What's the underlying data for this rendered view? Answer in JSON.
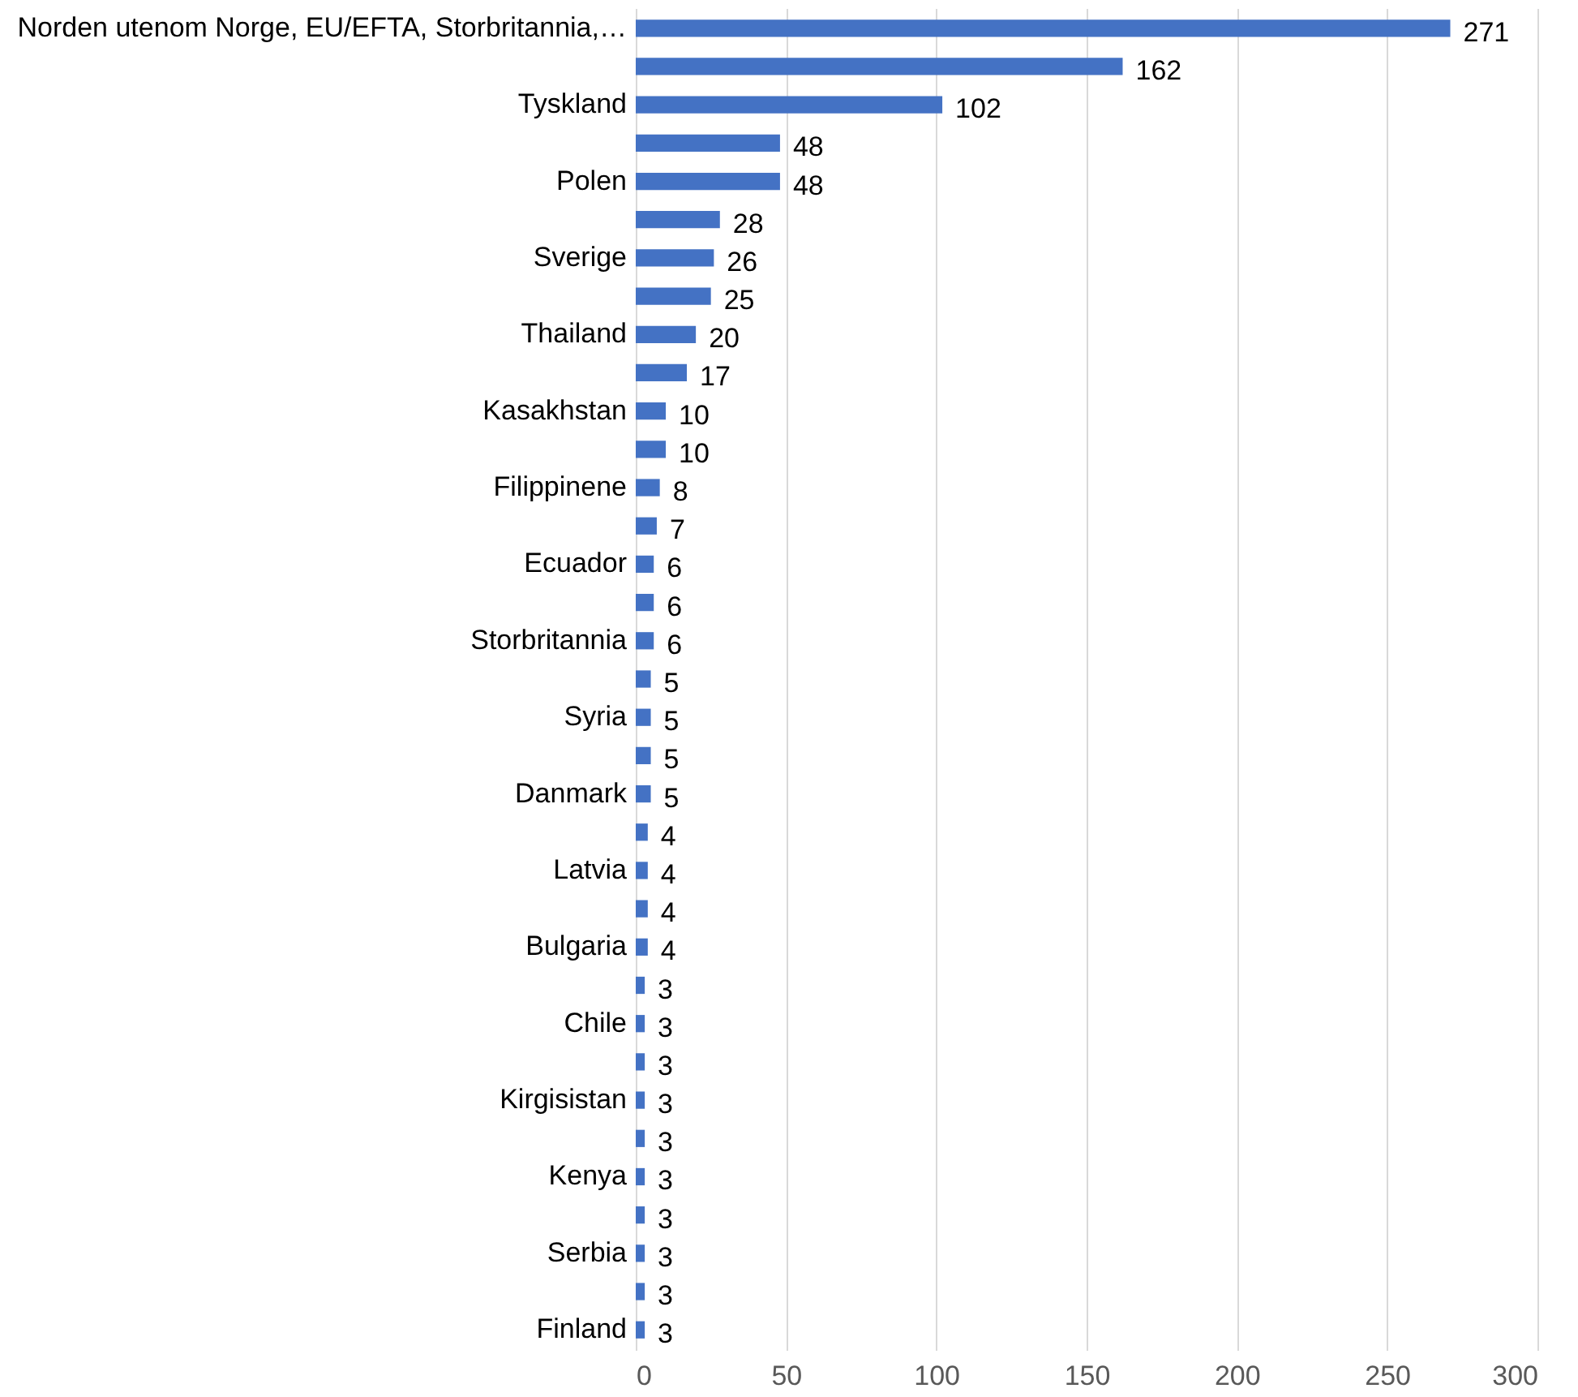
{
  "chart_data": {
    "type": "bar",
    "orientation": "horizontal",
    "categories": [
      "Norden utenom Norge, EU/EFTA,  Storbritannia,…",
      null,
      "Tyskland",
      null,
      "Polen",
      null,
      "Sverige",
      null,
      "Thailand",
      null,
      "Kasakhstan",
      null,
      "Filippinene",
      null,
      "Ecuador",
      null,
      "Storbritannia",
      null,
      "Syria",
      null,
      "Danmark",
      null,
      "Latvia",
      null,
      "Bulgaria",
      null,
      "Chile",
      null,
      "Kirgisistan",
      null,
      "Kenya",
      null,
      "Serbia",
      null,
      "Finland"
    ],
    "values": [
      271,
      162,
      102,
      48,
      48,
      28,
      26,
      25,
      20,
      17,
      10,
      10,
      8,
      7,
      6,
      6,
      6,
      5,
      5,
      5,
      5,
      4,
      4,
      4,
      4,
      3,
      3,
      3,
      3,
      3,
      3,
      3,
      3,
      3,
      3
    ],
    "color": "#4472c4",
    "xlim": [
      0,
      300
    ],
    "xticks": [
      0,
      50,
      100,
      150,
      200,
      250,
      300
    ],
    "grid": "x",
    "data_labels": true
  }
}
